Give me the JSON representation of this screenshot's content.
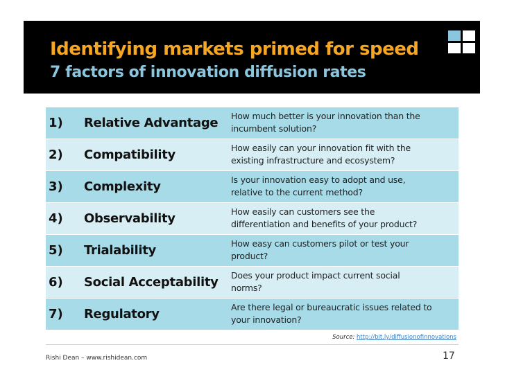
{
  "slide": {
    "title": "Identifying markets primed for speed",
    "subtitle": "7 factors of innovation diffusion rates",
    "colors": {
      "header_bg": "#000000",
      "title": "#f5a623",
      "subtitle": "#8ac6de",
      "row_dark": "#a8dbe8",
      "row_light": "#d8eef5",
      "logo_square_1": "#8ac6de",
      "logo_square_2": "#ffffff",
      "logo_square_3": "#8ac6de",
      "logo_square_4": "#ffffff"
    }
  },
  "factors": [
    {
      "num": "1)",
      "name": "Relative Advantage",
      "desc_line1": "How much better is your innovation than the",
      "desc_line2": "incumbent solution?"
    },
    {
      "num": "2)",
      "name": "Compatibility",
      "desc_line1": "How easily can your innovation fit with the",
      "desc_line2": "existing infrastructure and ecosystem?"
    },
    {
      "num": "3)",
      "name": "Complexity",
      "desc_line1": "Is your innovation easy to adopt and use,",
      "desc_line2": "relative to the current method?"
    },
    {
      "num": "4)",
      "name": "Observability",
      "desc_line1": "How easily can customers see the",
      "desc_line2": "differentiation and benefits of your product?"
    },
    {
      "num": "5)",
      "name": "Trialability",
      "desc_line1": "How easy can customers pilot or test your",
      "desc_line2": "product?"
    },
    {
      "num": "6)",
      "name": "Social Acceptability",
      "desc_line1": "Does your product impact current social",
      "desc_line2": "norms?"
    },
    {
      "num": "7)",
      "name": "Regulatory",
      "desc_line1": "Are there legal or bureaucratic issues related to",
      "desc_line2": "your innovation?"
    }
  ],
  "source": {
    "label": "Source:",
    "link": "http://bit.ly/diffusionofinnovations"
  },
  "footer": {
    "author": "Rishi Dean – www.rishidean.com",
    "page": "17"
  }
}
